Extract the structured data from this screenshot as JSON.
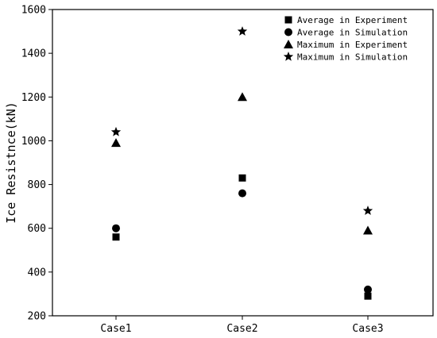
{
  "chart_data": {
    "type": "scatter",
    "title": "",
    "xlabel": "",
    "ylabel": "Ice Resistnce(kN)",
    "categories": [
      "Case1",
      "Case2",
      "Case3"
    ],
    "ylim": [
      200,
      1600
    ],
    "yticks": [
      200,
      400,
      600,
      800,
      1000,
      1200,
      1400,
      1600
    ],
    "grid": false,
    "legend_position": "top-right",
    "series": [
      {
        "name": "Average in Experiment",
        "marker": "square",
        "values": [
          560,
          830,
          290
        ]
      },
      {
        "name": "Average in Simulation",
        "marker": "circle",
        "values": [
          600,
          760,
          320
        ]
      },
      {
        "name": "Maximum in Experiment",
        "marker": "triangle",
        "values": [
          990,
          1200,
          590
        ]
      },
      {
        "name": "Maximum in Simulation",
        "marker": "star",
        "values": [
          1040,
          1500,
          680
        ]
      }
    ],
    "colors": {
      "marker": "#000000",
      "axis": "#000000",
      "background": "#ffffff"
    }
  }
}
